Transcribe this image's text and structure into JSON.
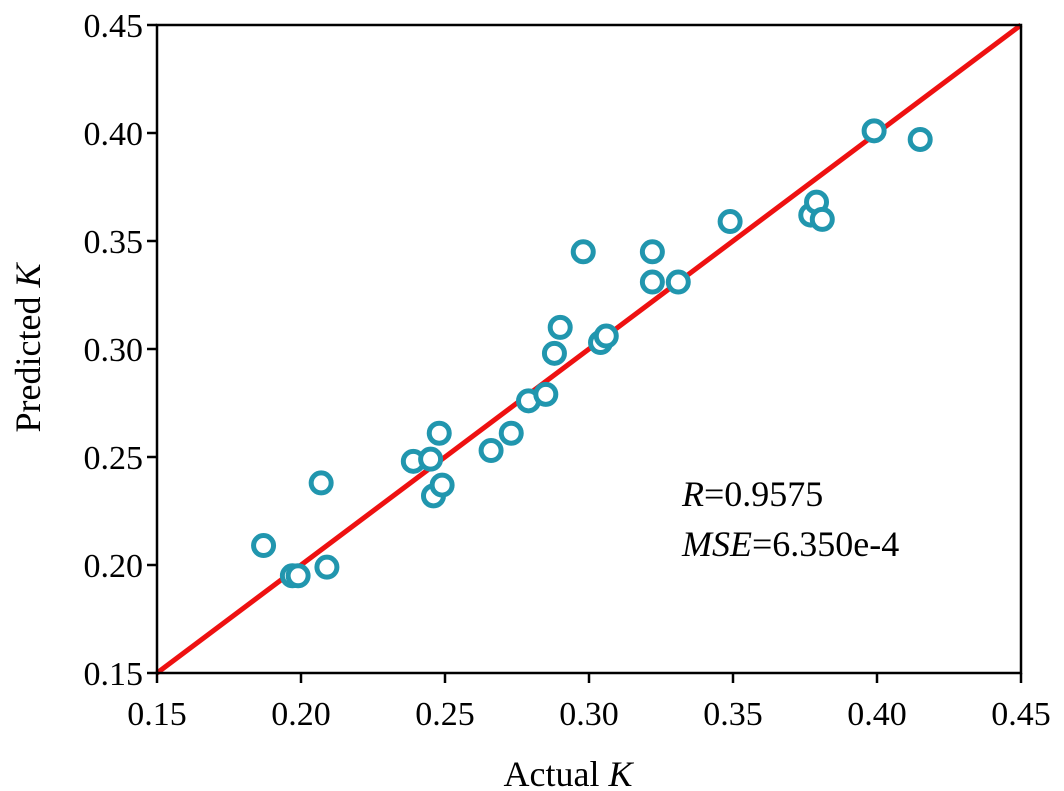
{
  "chart_data": {
    "type": "scatter",
    "xlabel": {
      "text": "Actual ",
      "italic": "K"
    },
    "ylabel": {
      "text": "Predicted ",
      "italic": "K"
    },
    "xlim": [
      0.15,
      0.45
    ],
    "ylim": [
      0.15,
      0.45
    ],
    "xticks": [
      "0.15",
      "0.20",
      "0.25",
      "0.30",
      "0.35",
      "0.40",
      "0.45"
    ],
    "yticks": [
      "0.15",
      "0.20",
      "0.25",
      "0.30",
      "0.35",
      "0.40",
      "0.45"
    ],
    "grid": false,
    "annotations": [
      {
        "italic": "R",
        "text": "=0.9575"
      },
      {
        "italic": "MSE",
        "text": "=6.350e-4"
      }
    ],
    "reference_line": {
      "from": [
        0.15,
        0.15
      ],
      "to": [
        0.45,
        0.45
      ],
      "color": "#ee1111"
    },
    "marker_color": "#2196ae",
    "series": [
      {
        "points": [
          [
            0.187,
            0.209
          ],
          [
            0.197,
            0.195
          ],
          [
            0.199,
            0.195
          ],
          [
            0.207,
            0.238
          ],
          [
            0.209,
            0.199
          ],
          [
            0.239,
            0.248
          ],
          [
            0.245,
            0.249
          ],
          [
            0.246,
            0.232
          ],
          [
            0.248,
            0.261
          ],
          [
            0.249,
            0.237
          ],
          [
            0.266,
            0.253
          ],
          [
            0.273,
            0.261
          ],
          [
            0.279,
            0.276
          ],
          [
            0.285,
            0.279
          ],
          [
            0.288,
            0.298
          ],
          [
            0.29,
            0.31
          ],
          [
            0.298,
            0.345
          ],
          [
            0.304,
            0.303
          ],
          [
            0.306,
            0.306
          ],
          [
            0.322,
            0.345
          ],
          [
            0.322,
            0.331
          ],
          [
            0.331,
            0.331
          ],
          [
            0.349,
            0.359
          ],
          [
            0.377,
            0.362
          ],
          [
            0.379,
            0.368
          ],
          [
            0.381,
            0.36
          ],
          [
            0.399,
            0.401
          ],
          [
            0.415,
            0.397
          ]
        ]
      }
    ]
  }
}
